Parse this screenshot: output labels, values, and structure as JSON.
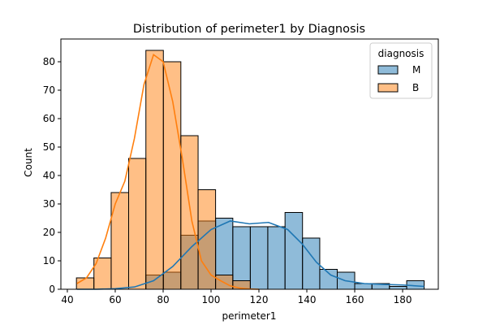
{
  "chart_data": {
    "type": "bar",
    "title": "Distribution of perimeter1 by Diagnosis",
    "xlabel": "perimeter1",
    "ylabel": "Count",
    "xlim": [
      37.3,
      194.9
    ],
    "ylim": [
      0,
      88
    ],
    "xticks": [
      40,
      60,
      80,
      100,
      120,
      140,
      160,
      180
    ],
    "yticks": [
      0,
      10,
      20,
      30,
      40,
      50,
      60,
      70,
      80
    ],
    "bin_edges": [
      43.8,
      51.1,
      58.3,
      65.6,
      72.8,
      80.1,
      87.4,
      94.6,
      101.9,
      109.1,
      116.4,
      123.7,
      130.9,
      138.2,
      145.4,
      152.7,
      160.0,
      167.2,
      174.5,
      181.7,
      189.0
    ],
    "legend": {
      "title": "diagnosis",
      "placement": "upper right"
    },
    "grid": false,
    "kde": true,
    "series": [
      {
        "name": "M",
        "color": "#1f77b4",
        "counts": [
          0,
          0,
          0,
          0,
          5,
          6,
          19,
          24,
          25,
          22,
          22,
          22,
          27,
          18,
          7,
          6,
          2,
          2,
          1,
          3
        ],
        "kde": [
          [
            44,
            0
          ],
          [
            52,
            0
          ],
          [
            60,
            0.2
          ],
          [
            68,
            0.8
          ],
          [
            76,
            3
          ],
          [
            84,
            8
          ],
          [
            92,
            15
          ],
          [
            100,
            21
          ],
          [
            108,
            24
          ],
          [
            116,
            23
          ],
          [
            124,
            23.5
          ],
          [
            132,
            21
          ],
          [
            138,
            16
          ],
          [
            144,
            9.5
          ],
          [
            150,
            5
          ],
          [
            156,
            3
          ],
          [
            164,
            2
          ],
          [
            172,
            1.7
          ],
          [
            180,
            1.5
          ],
          [
            189,
            1
          ]
        ]
      },
      {
        "name": "B",
        "color": "#ff7f0e",
        "counts": [
          4,
          11,
          34,
          46,
          84,
          80,
          54,
          35,
          5,
          3,
          0,
          0,
          0,
          0,
          0,
          0,
          0,
          0,
          0,
          0
        ],
        "kde": [
          [
            44,
            2
          ],
          [
            48,
            4
          ],
          [
            52,
            9
          ],
          [
            56,
            18
          ],
          [
            60,
            30
          ],
          [
            64,
            38
          ],
          [
            68,
            53
          ],
          [
            72,
            72
          ],
          [
            76,
            82.5
          ],
          [
            80,
            80
          ],
          [
            84,
            66
          ],
          [
            88,
            46
          ],
          [
            92,
            24
          ],
          [
            96,
            10
          ],
          [
            100,
            5
          ],
          [
            104,
            3
          ],
          [
            108,
            1.2
          ],
          [
            112,
            0.4
          ],
          [
            116,
            0.1
          ],
          [
            120,
            0
          ]
        ]
      }
    ]
  }
}
